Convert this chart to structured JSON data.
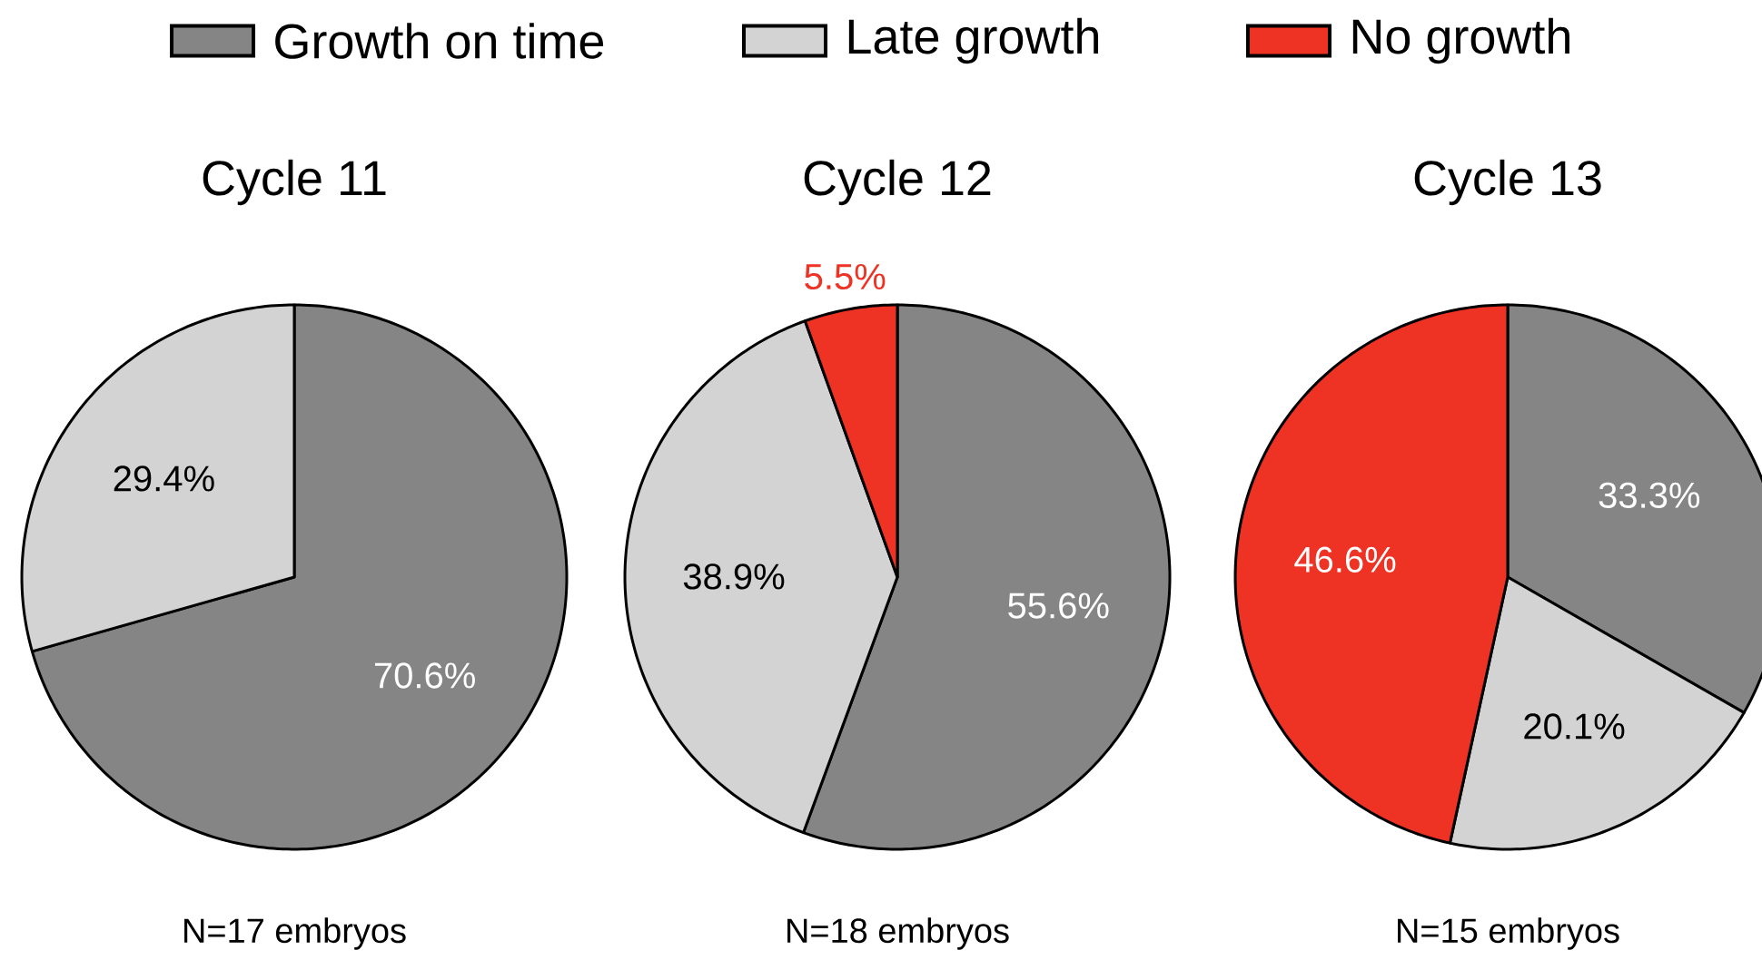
{
  "chart_data": [
    {
      "type": "pie",
      "title": "Cycle 11",
      "categories": [
        "Growth on time",
        "Late growth",
        "No growth"
      ],
      "values": [
        70.6,
        29.4,
        0
      ],
      "colors": [
        "#858585",
        "#d3d3d3",
        "#ee3224"
      ],
      "value_labels": [
        "70.6%",
        "29.4%",
        null
      ],
      "legend": "top",
      "annotations": [
        "N=17 embryos"
      ]
    },
    {
      "type": "pie",
      "title": "Cycle 12",
      "categories": [
        null,
        null,
        null
      ],
      "values": [
        55.6,
        38.9,
        5.5
      ],
      "colors": [
        "#858585",
        "#d3d3d3",
        "#ee3224"
      ],
      "value_labels": [
        "55.6%",
        "38.9%",
        "5.5%"
      ],
      "annotations": [
        "N=18 embryos"
      ]
    },
    {
      "type": "pie",
      "title": "Cycle 13",
      "categories": [
        null,
        null,
        null
      ],
      "values": [
        33.3,
        20.1,
        46.6
      ],
      "colors": [
        "#858585",
        "#d3d3d3",
        "#ee3224"
      ],
      "value_labels": [
        "33.3%",
        "20.1%",
        "46.6%"
      ],
      "annotations": [
        "N=15 embryos"
      ]
    }
  ]
}
